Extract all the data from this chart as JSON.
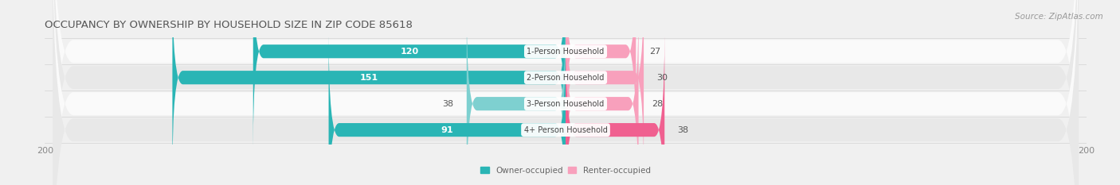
{
  "title": "OCCUPANCY BY OWNERSHIP BY HOUSEHOLD SIZE IN ZIP CODE 85618",
  "source": "Source: ZipAtlas.com",
  "categories": [
    "1-Person Household",
    "2-Person Household",
    "3-Person Household",
    "4+ Person Household"
  ],
  "owner_values": [
    120,
    151,
    38,
    91
  ],
  "renter_values": [
    27,
    30,
    28,
    38
  ],
  "owner_color_dark": "#2ab5b5",
  "owner_color_light": "#7ed0d0",
  "renter_color_dark": "#f06090",
  "renter_color_light": "#f8a0bc",
  "bar_height": 0.52,
  "xlim": [
    -200,
    200
  ],
  "background_color": "#f0f0f0",
  "row_bg_light": "#fafafa",
  "row_bg_dark": "#e8e8e8",
  "title_fontsize": 9.5,
  "source_fontsize": 7.5,
  "axis_fontsize": 8,
  "bar_label_fontsize": 8,
  "category_fontsize": 7,
  "legend_fontsize": 7.5
}
